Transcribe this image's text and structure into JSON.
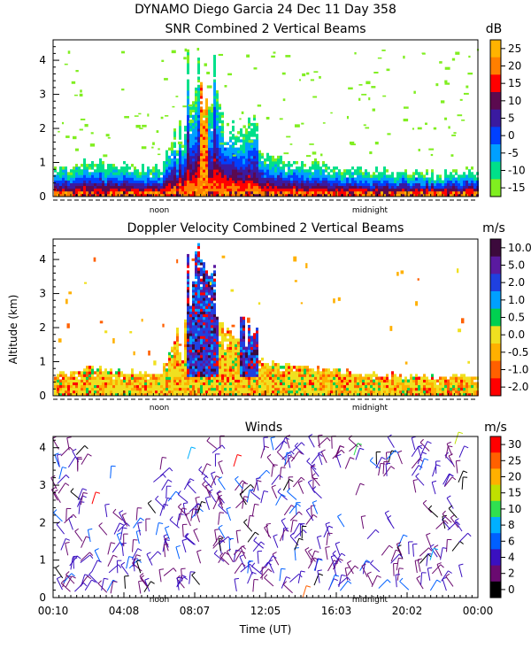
{
  "chart_data": [
    {
      "type": "heatmap",
      "title": "DYNAMO Diego Garcia  24 Dec 11 Day 358",
      "subtitle": "SNR Combined 2 Vertical Beams",
      "ylabel": "",
      "ylim": [
        0,
        4.6
      ],
      "y_ticks": [
        "0",
        "1",
        "2",
        "3",
        "4"
      ],
      "x_markers": [
        "noon",
        "midnight"
      ],
      "colorbar": {
        "unit": "dB",
        "ticks": [
          "25",
          "20",
          "15",
          "10",
          "5",
          "0",
          "-5",
          "-10",
          "-15"
        ],
        "colors": [
          "#ffb300",
          "#ff7f00",
          "#ff0000",
          "#5b0a4f",
          "#3a1aa0",
          "#0040ff",
          "#00a0ff",
          "#00e08a",
          "#80ee20"
        ]
      },
      "series": [
        {
          "x": [
            0,
            2,
            4,
            6,
            8,
            10,
            12,
            14,
            16,
            18,
            20,
            22,
            24
          ],
          "values": [
            0.6,
            0.8,
            0.7,
            0.6,
            3.2,
            2.0,
            1.0,
            0.8,
            0.7,
            0.6,
            0.5,
            0.5,
            0.6
          ]
        }
      ]
    },
    {
      "type": "heatmap",
      "title": "Doppler Velocity Combined 2 Vertical Beams",
      "ylabel": "Altitude (km)",
      "ylim": [
        0,
        4.6
      ],
      "y_ticks": [
        "0",
        "1",
        "2",
        "3",
        "4"
      ],
      "x_markers": [
        "noon",
        "midnight"
      ],
      "colorbar": {
        "unit": "m/s",
        "ticks": [
          "10.0",
          "5.0",
          "2.0",
          "1.0",
          "0.5",
          "0.0",
          "-0.5",
          "-1.0",
          "-2.0"
        ],
        "colors": [
          "#3c0a3c",
          "#5a1aa0",
          "#1f40e0",
          "#00a0ff",
          "#00d050",
          "#f0e020",
          "#ffb000",
          "#ff6000",
          "#ff0000"
        ]
      }
    },
    {
      "type": "scatter",
      "title": "Winds",
      "xlabel": "Time (UT)",
      "ylim": [
        0,
        4.3
      ],
      "y_ticks": [
        "0",
        "1",
        "2",
        "3",
        "4"
      ],
      "x_ticks": [
        "00:10",
        "04:08",
        "08:07",
        "12:05",
        "16:03",
        "20:02",
        "00:00"
      ],
      "x_markers": [
        "noon",
        "midnight"
      ],
      "colorbar": {
        "unit": "m/s",
        "ticks": [
          "30",
          "25",
          "20",
          "15",
          "10",
          "8",
          "6",
          "4",
          "2",
          "0"
        ],
        "colors": [
          "#ff0000",
          "#ff6000",
          "#ffb000",
          "#c0e000",
          "#30e050",
          "#00b0ff",
          "#0060ff",
          "#3a10c0",
          "#6a0a70",
          "#000000"
        ]
      }
    }
  ]
}
